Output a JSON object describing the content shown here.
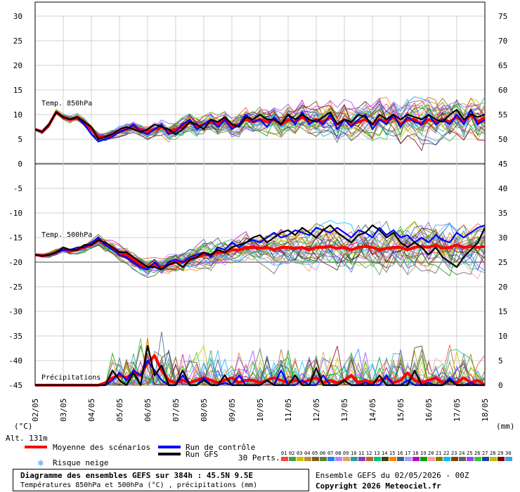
{
  "chart_data": {
    "type": "line",
    "title": "Diagramme des ensembles GEFS sur 384h : 45.5N 9.5E",
    "subtitle": "Températures 850hPa et 500hPa (°C) , précipitations (mm)",
    "left_axis": {
      "unit_label": "(°C)",
      "range": [
        -45,
        30
      ],
      "ticks": [
        "30",
        "25",
        "20",
        "15",
        "10",
        "5",
        "0",
        "-5",
        "-10",
        "-15",
        "-20",
        "-25",
        "-30",
        "-35",
        "-40",
        "-45"
      ]
    },
    "right_axis_temp": {
      "ticks": [
        "75",
        "70",
        "65",
        "60",
        "55",
        "50",
        "45",
        "40",
        "35",
        "30",
        "25",
        "20",
        "15",
        "10",
        "5",
        "0"
      ]
    },
    "right_axis_unit": "(mm)",
    "x_ticks": [
      "02/05",
      "03/05",
      "04/05",
      "05/05",
      "06/05",
      "07/05",
      "08/05",
      "09/05",
      "10/05",
      "11/05",
      "12/05",
      "13/05",
      "14/05",
      "15/05",
      "16/05",
      "17/05",
      "18/05"
    ],
    "panel_labels": {
      "t850": "Temp. 850hPa",
      "t500": "Temp. 500hPa",
      "precip": "Précipitations"
    },
    "altitude": "Alt. 131m",
    "series": [
      {
        "name": "Moyenne des scénarios",
        "color": "#ff0000",
        "t850": [
          7,
          6.5,
          8,
          10.5,
          9.5,
          9,
          9.5,
          8.5,
          7,
          5.5,
          5.5,
          6,
          6.5,
          7,
          7.5,
          7,
          6.5,
          7,
          7.5,
          6.5,
          7,
          7.5,
          8.5,
          7.5,
          8,
          8.5,
          8,
          9,
          7.5,
          8,
          9,
          8.5,
          9,
          8.5,
          9,
          8,
          9,
          8.5,
          9.5,
          8.5,
          9,
          8.5,
          9.5,
          8,
          9,
          8,
          8.5,
          9,
          8,
          9,
          8.5,
          9.5,
          8,
          9,
          9,
          8,
          9,
          8.5,
          9,
          8.5,
          9.5,
          8.5,
          10,
          8.5,
          9.5
        ],
        "t500": [
          -18.5,
          -18.7,
          -18.5,
          -18,
          -17.5,
          -17.8,
          -17.5,
          -17,
          -16.5,
          -15.5,
          -16.5,
          -17,
          -18,
          -18.5,
          -19.5,
          -20.5,
          -21,
          -20.5,
          -21,
          -20.5,
          -20,
          -20,
          -19.5,
          -19,
          -18.5,
          -18.5,
          -18,
          -18,
          -17.5,
          -17.5,
          -17,
          -17,
          -17.2,
          -17,
          -17.5,
          -17,
          -17,
          -17.2,
          -17,
          -17.5,
          -17,
          -17,
          -16.8,
          -17.2,
          -17,
          -17.5,
          -17,
          -16.8,
          -17,
          -17.5,
          -17.2,
          -17,
          -17,
          -17.5,
          -17,
          -16.8,
          -17,
          -16.5,
          -17.2,
          -17,
          -16.5,
          -17,
          -16.8,
          -17,
          -16.8
        ],
        "precip": [
          0,
          0,
          0,
          0,
          0,
          0,
          0,
          0,
          0,
          0,
          0.5,
          1.5,
          2,
          1.5,
          2.5,
          2,
          4.5,
          6,
          3,
          1,
          0.5,
          1,
          0.5,
          1,
          1.5,
          1,
          0.5,
          1,
          1.5,
          0.5,
          1,
          1,
          0.5,
          1,
          1.5,
          1,
          0.5,
          1,
          0.5,
          1,
          1.5,
          0.5,
          1,
          0.5,
          1,
          2,
          0.5,
          1,
          0.5,
          1,
          1.5,
          0.5,
          1,
          2.5,
          1,
          0.5,
          1,
          1.5,
          0.5,
          1,
          0.5,
          1.5,
          0.5,
          1,
          0
        ]
      },
      {
        "name": "Run de contrôle",
        "color": "#0000ff",
        "t850": [
          7,
          6.5,
          8,
          10.5,
          9.5,
          9,
          9.5,
          8,
          6,
          4.5,
          5,
          5.5,
          6.5,
          7,
          8,
          6.5,
          6,
          7,
          8,
          6,
          6.5,
          8,
          9,
          7,
          8,
          9,
          7.5,
          9,
          7,
          8,
          10,
          8.5,
          9,
          7.5,
          9.5,
          8,
          10,
          8,
          10.5,
          8,
          9,
          8,
          10,
          7,
          9,
          7.5,
          9,
          10,
          7,
          9,
          8,
          10,
          7.5,
          9.5,
          8.5,
          8,
          10,
          8,
          9,
          8,
          10,
          8,
          11,
          8,
          9
        ],
        "t500": [
          -18.5,
          -18.7,
          -18.5,
          -18,
          -17.5,
          -17.5,
          -17,
          -17,
          -16,
          -15,
          -16.5,
          -17.5,
          -18.5,
          -19,
          -20,
          -21,
          -21.5,
          -20,
          -21.5,
          -20,
          -19.5,
          -20,
          -19,
          -18.5,
          -18,
          -19,
          -17,
          -17.5,
          -16,
          -17,
          -16,
          -15.5,
          -16,
          -15,
          -14,
          -15,
          -14.5,
          -13.5,
          -14,
          -14.5,
          -13,
          -13.5,
          -14,
          -13,
          -14,
          -15,
          -13.5,
          -14,
          -15,
          -13,
          -14.5,
          -13.5,
          -15,
          -14.5,
          -16,
          -15,
          -16,
          -14.5,
          -15.5,
          -16,
          -14,
          -15,
          -14,
          -13,
          -12.5
        ],
        "precip": [
          0,
          0,
          0,
          0,
          0,
          0,
          0,
          0,
          0,
          0,
          0,
          1,
          2.5,
          1,
          3,
          2,
          5,
          3,
          1,
          0,
          0,
          2,
          0,
          0,
          1.5,
          0,
          0,
          0.5,
          0,
          2,
          0,
          0,
          0,
          1,
          0,
          3,
          0,
          0,
          1,
          0,
          0,
          2,
          0,
          0,
          1,
          0,
          0,
          0.5,
          0,
          0,
          2,
          0,
          0,
          1,
          0,
          0,
          0.5,
          0,
          0,
          1.5,
          0,
          0,
          0.5,
          0,
          0
        ]
      },
      {
        "name": "Run GFS",
        "color": "#000000",
        "t850": [
          7,
          6.5,
          8,
          10.5,
          9.5,
          9,
          9.5,
          8.5,
          7.5,
          5,
          5.5,
          6,
          7,
          7.5,
          7,
          6.5,
          7,
          8,
          7.5,
          7,
          6,
          7,
          8.5,
          8,
          7,
          9,
          8.5,
          9.5,
          8,
          7.5,
          9.5,
          9,
          10,
          9,
          9,
          8,
          10,
          9,
          10,
          9,
          8.5,
          9.5,
          10.5,
          8,
          9,
          8.5,
          10,
          9.5,
          8,
          10,
          9,
          10,
          9,
          10,
          9.5,
          9,
          10,
          9,
          8.5,
          10,
          11,
          9,
          10,
          9.5,
          10
        ],
        "t500": [
          -18.5,
          -18.7,
          -18.5,
          -18,
          -17,
          -17.5,
          -17.5,
          -16.5,
          -16.5,
          -15.5,
          -16,
          -17,
          -18,
          -18,
          -19,
          -20,
          -21,
          -21,
          -21.5,
          -20.5,
          -20,
          -21,
          -19.5,
          -19,
          -18,
          -18.5,
          -17.5,
          -18,
          -17,
          -16.5,
          -16,
          -15,
          -14.5,
          -16,
          -15,
          -14,
          -13.5,
          -14.5,
          -13,
          -14,
          -15,
          -13.5,
          -12.5,
          -14,
          -15,
          -16,
          -14.5,
          -14,
          -12.5,
          -13.5,
          -15,
          -14,
          -16,
          -17,
          -16,
          -17,
          -18.5,
          -17,
          -19,
          -20,
          -21,
          -19,
          -17.5,
          -16,
          -13
        ],
        "precip": [
          0,
          0,
          0,
          0,
          0,
          0,
          0,
          0,
          0,
          0,
          0,
          3,
          1,
          0,
          2.5,
          0,
          8,
          2,
          4,
          0,
          0,
          3,
          0,
          0,
          1,
          0,
          0,
          2,
          0,
          0,
          0,
          0,
          0,
          1,
          0,
          0,
          0,
          2,
          0,
          0,
          3.5,
          0,
          0,
          0,
          1,
          0,
          0,
          0,
          0,
          2,
          0,
          0,
          0,
          0,
          3,
          0,
          0,
          0,
          0,
          1,
          0,
          0,
          0,
          0,
          0
        ]
      }
    ],
    "perturbation_count_label": "30 Perts.",
    "perturbations": [
      {
        "name": "01",
        "color": "#ff4040"
      },
      {
        "name": "02",
        "color": "#40a040"
      },
      {
        "name": "03",
        "color": "#d0c000"
      },
      {
        "name": "04",
        "color": "#c09020"
      },
      {
        "name": "05",
        "color": "#806020"
      },
      {
        "name": "06",
        "color": "#608030"
      },
      {
        "name": "07",
        "color": "#2080ff"
      },
      {
        "name": "08",
        "color": "#c080ff"
      },
      {
        "name": "09",
        "color": "#e0a060"
      },
      {
        "name": "10",
        "color": "#20a0a0"
      },
      {
        "name": "11",
        "color": "#8040c0"
      },
      {
        "name": "12",
        "color": "#c06020"
      },
      {
        "name": "13",
        "color": "#00c080"
      },
      {
        "name": "14",
        "color": "#404000"
      },
      {
        "name": "15",
        "color": "#ff8000"
      },
      {
        "name": "16",
        "color": "#406080"
      },
      {
        "name": "17",
        "color": "#a0a0ff"
      },
      {
        "name": "18",
        "color": "#c000c0"
      },
      {
        "name": "19",
        "color": "#00a000"
      },
      {
        "name": "20",
        "color": "#ffa0a0"
      },
      {
        "name": "21",
        "color": "#808000"
      },
      {
        "name": "22",
        "color": "#00c0ff"
      },
      {
        "name": "23",
        "color": "#804000"
      },
      {
        "name": "24",
        "color": "#606060"
      },
      {
        "name": "25",
        "color": "#a040ff"
      },
      {
        "name": "26",
        "color": "#40c040"
      },
      {
        "name": "27",
        "color": "#2040a0"
      },
      {
        "name": "28",
        "color": "#c0c000"
      },
      {
        "name": "29",
        "color": "#800000"
      },
      {
        "name": "30",
        "color": "#40a0e0"
      }
    ],
    "legend": {
      "mean_label": "Moyenne des scénarios",
      "control_label": "Run de contrôle",
      "gfs_label": "Run GFS",
      "snow_label": "Risque neige"
    },
    "grid": true
  },
  "footer": {
    "title": "Diagramme des ensembles GEFS sur 384h : 45.5N 9.5E",
    "subtitle": "Températures 850hPa et 500hPa (°C) , précipitations (mm)",
    "run_info": "Ensemble GEFS du 02/05/2026 - 00Z",
    "copyright": "Copyright 2026 Meteociel.fr"
  },
  "colors": {
    "mean": "#ff0000",
    "control": "#0000ff",
    "gfs": "#000000",
    "grid": "#c0c0c0",
    "snow_icon": "#3a9ad9"
  }
}
